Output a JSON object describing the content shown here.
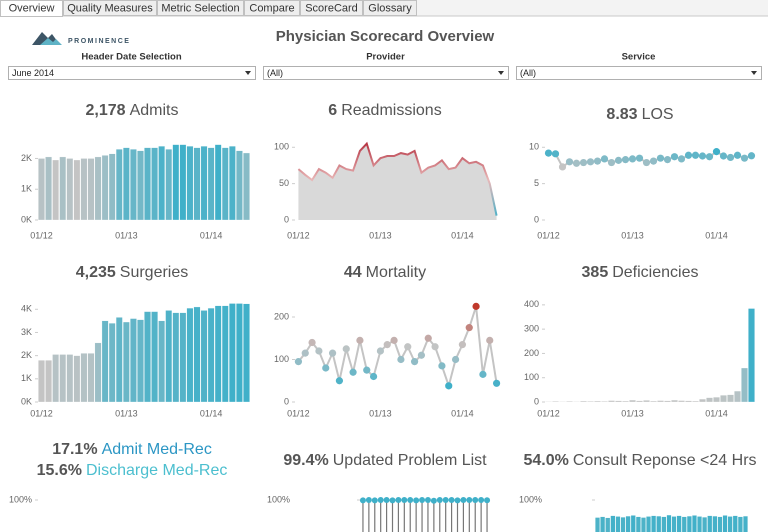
{
  "tabs": [
    "Overview",
    "Quality Measures",
    "Metric Selection",
    "Compare",
    "ScoreCard",
    "Glossary"
  ],
  "header": {
    "brand": "PROMINENCE",
    "title": "Physician Scorecard Overview"
  },
  "filters": [
    {
      "label": "Header Date Selection",
      "value": "June 2014"
    },
    {
      "label": "Provider",
      "value": "(All)"
    },
    {
      "label": "Service",
      "value": "(All)"
    }
  ],
  "chart_data": [
    {
      "type": "bar",
      "kpi": "2,178",
      "title": "Admits",
      "categories": [
        "01/12",
        null,
        null,
        null,
        null,
        null,
        null,
        null,
        null,
        null,
        null,
        null,
        "01/13",
        null,
        null,
        null,
        null,
        null,
        null,
        null,
        null,
        null,
        null,
        null,
        "01/14",
        null,
        null,
        null,
        null,
        null
      ],
      "values": [
        2000,
        2050,
        1950,
        2050,
        2000,
        1950,
        2000,
        2000,
        2050,
        2100,
        2150,
        2300,
        2350,
        2300,
        2250,
        2350,
        2350,
        2400,
        2300,
        2450,
        2450,
        2400,
        2350,
        2400,
        2350,
        2450,
        2350,
        2400,
        2250,
        2178
      ],
      "color_range": [
        "#c4c4c4",
        "#3fb0c9"
      ],
      "ylim": [
        0,
        2600
      ],
      "yticks": [
        {
          "value": 0,
          "label": "0K"
        },
        {
          "value": 1000,
          "label": "1K"
        },
        {
          "value": 2000,
          "label": "2K"
        }
      ]
    },
    {
      "type": "area",
      "kpi": "6",
      "title": "Readmissions",
      "categories": [
        "01/12",
        null,
        null,
        null,
        null,
        null,
        null,
        null,
        null,
        null,
        null,
        null,
        "01/13",
        null,
        null,
        null,
        null,
        null,
        null,
        null,
        null,
        null,
        null,
        null,
        "01/14",
        null,
        null,
        null,
        null,
        null
      ],
      "values": [
        70,
        62,
        55,
        70,
        65,
        58,
        75,
        70,
        68,
        95,
        105,
        75,
        85,
        88,
        88,
        92,
        90,
        95,
        65,
        72,
        75,
        82,
        70,
        72,
        85,
        78,
        80,
        75,
        50,
        6
      ],
      "color_range": [
        "#3fb0c9",
        "#e8b8b8",
        "#b22a3a"
      ],
      "fill": "#d9d9d9",
      "ylim": [
        0,
        110
      ],
      "yticks": [
        0,
        50,
        100
      ]
    },
    {
      "type": "line",
      "kpi": "8.83",
      "title": "LOS",
      "categories": [
        "01/12",
        null,
        null,
        null,
        null,
        null,
        null,
        null,
        null,
        null,
        null,
        null,
        "01/13",
        null,
        null,
        null,
        null,
        null,
        null,
        null,
        null,
        null,
        null,
        null,
        "01/14",
        null,
        null,
        null,
        null,
        null
      ],
      "values": [
        9.2,
        9.1,
        7.3,
        8.0,
        7.8,
        7.9,
        8.0,
        8.1,
        8.4,
        7.9,
        8.2,
        8.3,
        8.4,
        8.5,
        7.9,
        8.1,
        8.5,
        8.3,
        8.7,
        8.4,
        8.9,
        8.9,
        8.8,
        8.7,
        9.4,
        8.8,
        8.6,
        8.9,
        8.5,
        8.83
      ],
      "color_range": [
        "#c4c4c4",
        "#3fb0c9"
      ],
      "ylim": [
        0,
        11
      ],
      "yticks": [
        0,
        5,
        10
      ]
    },
    {
      "type": "bar",
      "kpi": "4,235",
      "title": "Surgeries",
      "categories": [
        "01/12",
        null,
        null,
        null,
        null,
        null,
        null,
        null,
        null,
        null,
        null,
        null,
        "01/13",
        null,
        null,
        null,
        null,
        null,
        null,
        null,
        null,
        null,
        null,
        null,
        "01/14",
        null,
        null,
        null,
        null,
        null
      ],
      "values": [
        1800,
        1800,
        2050,
        2050,
        2050,
        2000,
        2100,
        2100,
        2550,
        3500,
        3400,
        3650,
        3450,
        3600,
        3550,
        3900,
        3900,
        3500,
        3950,
        3850,
        3850,
        4050,
        4100,
        3950,
        4050,
        4150,
        4150,
        4250,
        4250,
        4235
      ],
      "color_range": [
        "#c4c4c4",
        "#3fb0c9"
      ],
      "ylim": [
        0,
        4400
      ],
      "yticks": [
        {
          "value": 0,
          "label": "0K"
        },
        {
          "value": 1000,
          "label": "1K"
        },
        {
          "value": 2000,
          "label": "2K"
        },
        {
          "value": 3000,
          "label": "3K"
        },
        {
          "value": 4000,
          "label": "4K"
        }
      ]
    },
    {
      "type": "line",
      "kpi": "44",
      "title": "Mortality",
      "categories": [
        "01/12",
        null,
        null,
        null,
        null,
        null,
        null,
        null,
        null,
        null,
        null,
        null,
        "01/13",
        null,
        null,
        null,
        null,
        null,
        null,
        null,
        null,
        null,
        null,
        null,
        "01/14",
        null,
        null,
        null,
        null,
        null
      ],
      "values": [
        95,
        115,
        140,
        120,
        80,
        115,
        50,
        125,
        70,
        145,
        75,
        60,
        120,
        135,
        145,
        100,
        130,
        95,
        110,
        150,
        130,
        85,
        38,
        100,
        135,
        175,
        225,
        65,
        145,
        44
      ],
      "color_range": [
        "#3fb0c9",
        "#c4c4c4",
        "#c0392b"
      ],
      "ylim": [
        0,
        240
      ],
      "yticks": [
        0,
        100,
        200
      ]
    },
    {
      "type": "bar",
      "kpi": "385",
      "title": "Deficiencies",
      "categories": [
        "01/12",
        null,
        null,
        null,
        null,
        null,
        null,
        null,
        null,
        null,
        null,
        null,
        "01/13",
        null,
        null,
        null,
        null,
        null,
        null,
        null,
        null,
        null,
        null,
        null,
        "01/14",
        null,
        null,
        null,
        null,
        null
      ],
      "values": [
        2,
        3,
        2,
        3,
        2,
        4,
        3,
        4,
        3,
        6,
        5,
        4,
        8,
        5,
        7,
        4,
        6,
        5,
        8,
        6,
        5,
        4,
        12,
        18,
        20,
        28,
        30,
        45,
        140,
        385
      ],
      "color_range": [
        "#c4c4c4",
        "#3fb0c9"
      ],
      "ylim": [
        0,
        420
      ],
      "yticks": [
        0,
        100,
        200,
        300,
        400
      ]
    },
    {
      "type": "axis",
      "kpis": [
        {
          "value": "17.1%",
          "title": "Admit Med-Rec",
          "color": "#2b96c4"
        },
        {
          "value": "15.6%",
          "title": "Discharge Med-Rec",
          "color": "#4cbfcf"
        }
      ],
      "ylim": [
        0,
        100
      ],
      "yticks": [
        {
          "value": 100,
          "label": "100%"
        }
      ]
    },
    {
      "type": "lollipop",
      "kpi": "99.4%",
      "title": "Updated Problem List",
      "values": [
        99,
        100,
        99,
        100,
        100,
        99,
        100,
        100,
        100,
        99,
        100,
        100,
        98,
        100,
        100,
        100,
        99,
        100,
        100,
        100,
        100,
        99.4
      ],
      "color": "#3fb0c9",
      "ylim": [
        0,
        100
      ],
      "yticks": [
        {
          "value": 100,
          "label": "100%"
        }
      ]
    },
    {
      "type": "bar",
      "kpi": "54.0%",
      "title": "Consult Reponse <24 Hrs",
      "values": [
        50,
        52,
        49,
        55,
        53,
        51,
        54,
        56,
        52,
        50,
        53,
        55,
        54,
        52,
        57,
        53,
        55,
        52,
        54,
        56,
        53,
        51,
        55,
        54,
        52,
        56,
        53,
        55,
        52,
        54
      ],
      "color_range": [
        "#4fb3c8",
        "#3fb0c9"
      ],
      "ylim": [
        0,
        100
      ],
      "yticks": [
        {
          "value": 100,
          "label": "100%"
        }
      ]
    }
  ]
}
